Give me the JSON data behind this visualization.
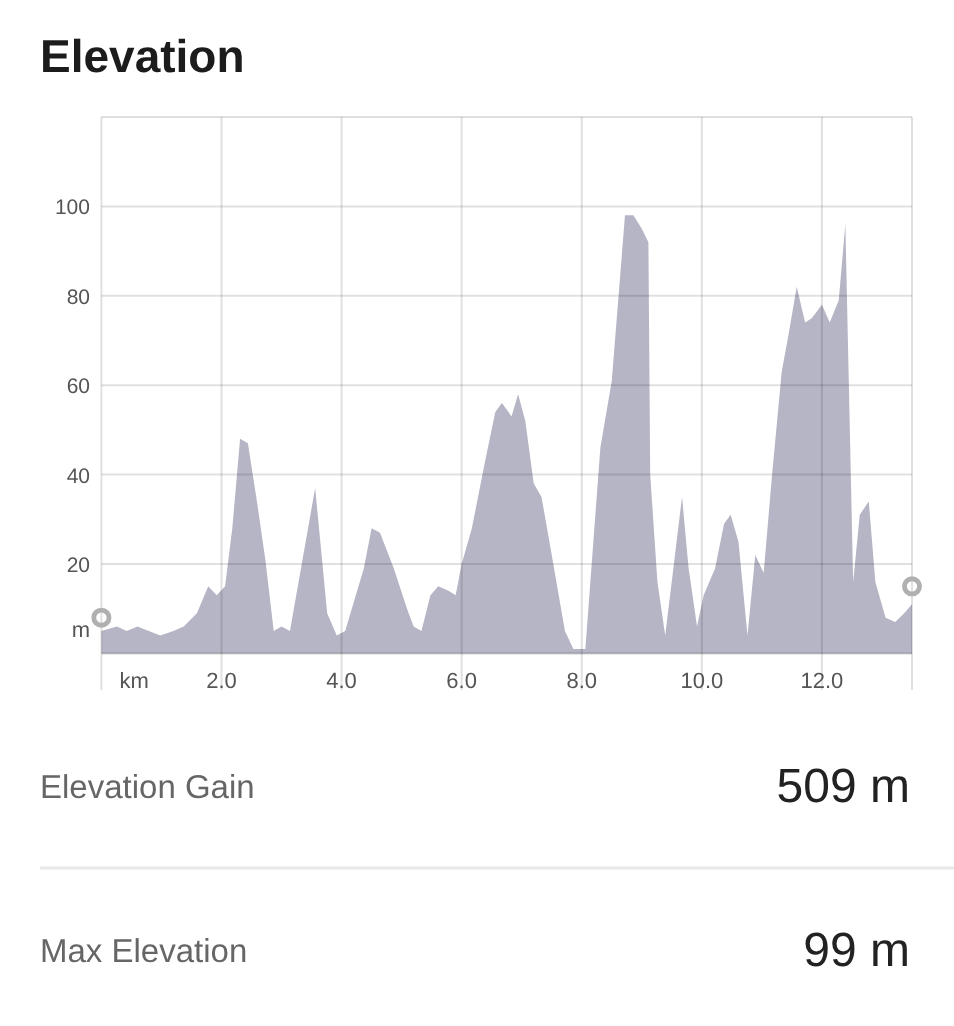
{
  "chart_data": {
    "type": "area",
    "title": "Elevation",
    "xlabel": "km",
    "ylabel": "m",
    "xlim": [
      0,
      13.5
    ],
    "ylim": [
      0,
      120
    ],
    "xticks": [
      {
        "value": 0,
        "label": null
      },
      {
        "value": 2,
        "label": "2.0"
      },
      {
        "value": 4,
        "label": "4.0"
      },
      {
        "value": 6,
        "label": "6.0"
      },
      {
        "value": 8,
        "label": "8.0"
      },
      {
        "value": 10,
        "label": "10.0"
      },
      {
        "value": 12,
        "label": "12.0"
      }
    ],
    "yticks": [
      20,
      40,
      60,
      80,
      100
    ],
    "grid": true,
    "series": [
      {
        "color": "#b5b5c5",
        "x": [
          0,
          0.26,
          0.42,
          0.6,
          0.98,
          1.2,
          1.37,
          1.59,
          1.78,
          1.92,
          2.06,
          2.18,
          2.31,
          2.44,
          2.59,
          2.73,
          2.87,
          3.0,
          3.14,
          3.56,
          3.76,
          3.92,
          4.06,
          4.37,
          4.5,
          4.64,
          4.87,
          5.09,
          5.2,
          5.33,
          5.48,
          5.61,
          5.78,
          5.9,
          6.0,
          6.17,
          6.39,
          6.56,
          6.67,
          6.78,
          6.83,
          6.94,
          7.06,
          7.2,
          7.33,
          7.5,
          7.72,
          7.86,
          8.06,
          8.31,
          8.5,
          8.72,
          8.86,
          9.0,
          9.11,
          9.14,
          9.26,
          9.39,
          9.67,
          9.78,
          9.92,
          10.03,
          10.22,
          10.37,
          10.48,
          10.61,
          10.76,
          10.89,
          11.03,
          11.17,
          11.33,
          11.44,
          11.58,
          11.72,
          11.83,
          12.0,
          12.13,
          12.28,
          12.39,
          12.52,
          12.63,
          12.78,
          12.89,
          13.06,
          13.22,
          13.37,
          13.5
        ],
        "values": [
          5,
          6,
          5,
          6,
          4,
          5,
          6,
          9,
          15,
          13,
          15,
          28,
          48,
          47,
          34,
          21,
          5,
          6,
          5,
          37,
          9,
          4,
          5,
          19,
          28,
          27,
          19,
          10,
          6,
          5,
          13,
          15,
          14,
          13,
          20,
          28,
          43,
          54,
          56,
          54,
          53,
          58,
          52,
          38,
          35,
          22,
          5,
          1,
          1,
          46,
          61,
          98,
          98,
          95,
          92,
          40,
          16,
          4,
          35,
          19,
          6,
          13,
          19,
          29,
          31,
          25,
          4,
          22,
          18,
          40,
          63,
          71,
          82,
          74,
          75,
          78,
          74,
          79,
          96,
          16,
          31,
          34,
          16,
          8,
          7,
          9,
          11
        ]
      },
      {
        "type": "scatter",
        "color": "#b0b0b0",
        "marker": "circle",
        "x": [
          0,
          13.5
        ],
        "values": [
          8,
          15
        ]
      }
    ],
    "annotations": [
      "Elevation Gain",
      "509 m",
      "Max Elevation",
      "99 m"
    ]
  }
}
